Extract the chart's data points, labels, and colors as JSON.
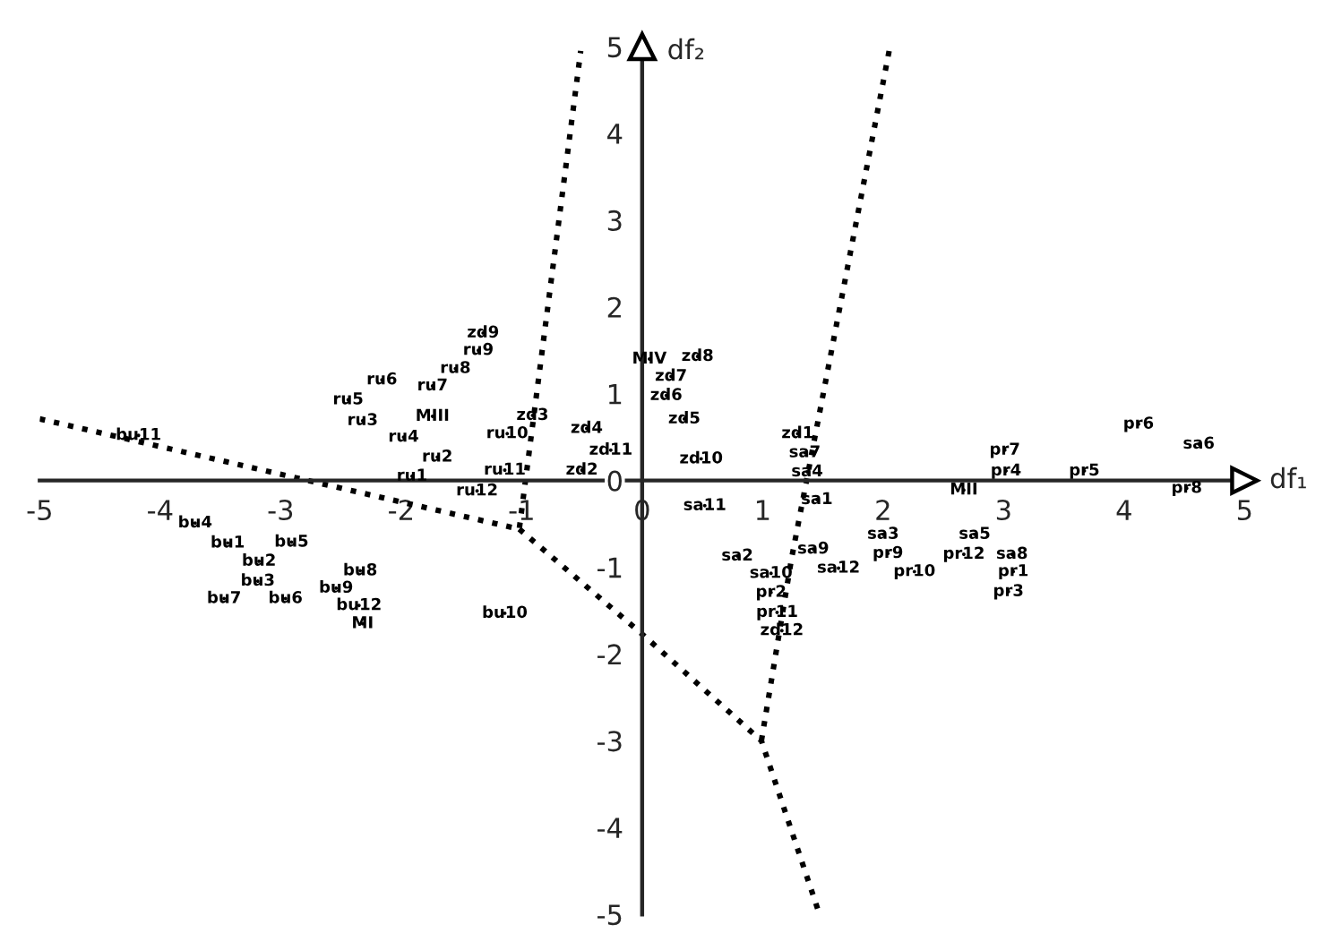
{
  "chart_data": {
    "type": "scatter",
    "xlabel": "df₁",
    "ylabel": "df₂",
    "xlim": [
      -5,
      5
    ],
    "ylim": [
      -5,
      5
    ],
    "xticks": [
      -5,
      -4,
      -3,
      -2,
      -1,
      0,
      1,
      2,
      3,
      4,
      5
    ],
    "yticks": [
      -5,
      -4,
      -3,
      -2,
      -1,
      0,
      1,
      2,
      3,
      4,
      5
    ],
    "grid": false,
    "legend": false,
    "series": [
      {
        "color": "#000000",
        "x": [
          -4.18,
          -3.71,
          -3.44,
          -2.91,
          -3.18,
          -3.19,
          -3.47,
          -2.96,
          -2.34,
          -2.54,
          -2.35,
          -2.32,
          -1.14,
          -2.16,
          -2.44,
          -2.32,
          -1.32,
          -1.36,
          -1.55,
          -1.74,
          -1.74,
          -1.98,
          -1.7,
          -1.91,
          -1.37,
          -1.14,
          -1.12,
          -0.91,
          -0.46,
          -0.26,
          -0.5,
          0.06,
          0.46,
          0.24,
          0.2,
          0.35,
          0.49,
          0.52,
          1.29,
          1.35,
          1.37,
          1.45,
          0.79,
          1.42,
          1.07,
          1.63,
          1.07,
          1.12,
          1.16,
          2.0,
          2.04,
          2.26,
          2.67,
          2.76,
          2.67,
          3.07,
          3.08,
          3.04,
          3.01,
          3.02,
          3.67,
          4.12,
          4.62,
          4.52
        ],
        "values": [
          0.52,
          -0.49,
          -0.72,
          -0.71,
          -0.93,
          -1.16,
          -1.36,
          -1.36,
          -1.04,
          -1.24,
          -1.44,
          -1.65,
          -1.53,
          1.16,
          0.93,
          0.69,
          1.7,
          1.5,
          1.29,
          1.09,
          0.74,
          0.5,
          0.27,
          0.05,
          -0.12,
          0.12,
          0.54,
          0.75,
          0.6,
          0.35,
          0.12,
          1.4,
          1.43,
          1.2,
          0.98,
          0.71,
          0.25,
          -0.29,
          0.54,
          0.32,
          0.1,
          -0.22,
          -0.87,
          -0.79,
          -1.07,
          -1.01,
          -1.29,
          -1.52,
          -1.73,
          -0.62,
          -0.84,
          -1.05,
          -0.11,
          -0.62,
          -0.85,
          -0.85,
          -1.05,
          -1.28,
          0.35,
          0.11,
          0.11,
          0.65,
          0.42,
          -0.09
        ],
        "value_labels": [
          "bu11",
          "bu4",
          "bu1",
          "bu5",
          "bu2",
          "bu3",
          "bu7",
          "bu6",
          "bu8",
          "bu9",
          "bu12",
          "MI",
          "bu10",
          "ru6",
          "ru5",
          "ru3",
          "zd9",
          "ru9",
          "ru8",
          "ru7",
          "MIII",
          "ru4",
          "ru2",
          "ru1",
          "ru12",
          "ru11",
          "ru10",
          "zd3",
          "zd4",
          "zd11",
          "zd2",
          "MIV",
          "zd8",
          "zd7",
          "zd6",
          "zd5",
          "zd10",
          "sa11",
          "zd1",
          "sa7",
          "sa4",
          "sa1",
          "sa2",
          "sa9",
          "sa10",
          "sa12",
          "pr2",
          "pr11",
          "zd12",
          "sa3",
          "pr9",
          "pr10",
          "MII",
          "sa5",
          "pr12",
          "sa8",
          "pr1",
          "pr3",
          "pr7",
          "pr4",
          "pr5",
          "pr6",
          "sa6",
          "pr8"
        ]
      },
      {
        "type": "line",
        "color": "#000000",
        "line_style": "dotted",
        "x": [
          -5,
          -1.02,
          -0.51
        ],
        "values": [
          0.71,
          -0.56,
          4.95
        ]
      },
      {
        "type": "line",
        "color": "#000000",
        "line_style": "dotted",
        "x": [
          -1.02,
          0,
          0.99,
          1.46
        ],
        "values": [
          -0.56,
          -1.77,
          -3.0,
          -4.95
        ]
      },
      {
        "type": "line",
        "color": "#000000",
        "line_style": "dotted",
        "x": [
          0.99,
          1.24,
          2.05
        ],
        "values": [
          -3.0,
          -0.9,
          4.95
        ]
      }
    ]
  }
}
